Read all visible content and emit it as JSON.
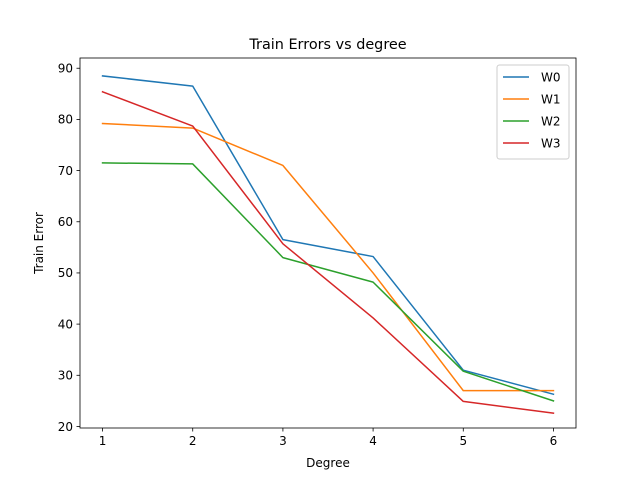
{
  "chart_data": {
    "type": "line",
    "title": "Train Errors vs degree",
    "xlabel": "Degree",
    "ylabel": "Train Error",
    "x": [
      1,
      2,
      3,
      4,
      5,
      6
    ],
    "xlim": [
      0.75,
      6.25
    ],
    "ylim": [
      19.7,
      92.0
    ],
    "xticks": [
      1,
      2,
      3,
      4,
      5,
      6
    ],
    "yticks": [
      20,
      30,
      40,
      50,
      60,
      70,
      80,
      90
    ],
    "grid": false,
    "legend_position": "top-right",
    "series": [
      {
        "name": "W0",
        "color": "#1f77b4",
        "values": [
          88.5,
          86.5,
          56.5,
          53.2,
          31.0,
          26.3
        ]
      },
      {
        "name": "W1",
        "color": "#ff7f0e",
        "values": [
          79.2,
          78.3,
          71.0,
          50.0,
          27.0,
          27.0
        ]
      },
      {
        "name": "W2",
        "color": "#2ca02c",
        "values": [
          71.5,
          71.3,
          53.0,
          48.2,
          30.8,
          25.0
        ]
      },
      {
        "name": "W3",
        "color": "#d62728",
        "values": [
          85.4,
          78.7,
          55.7,
          41.2,
          24.9,
          22.6
        ]
      }
    ]
  }
}
